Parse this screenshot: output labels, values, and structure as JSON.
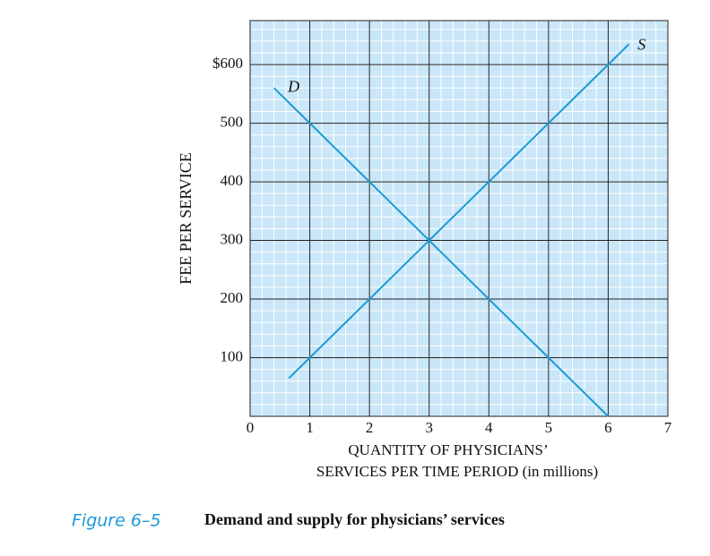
{
  "chart_data": {
    "type": "line",
    "xlabel": [
      "QUANTITY OF PHYSICIANS’",
      "SERVICES PER TIME PERIOD (in millions)"
    ],
    "ylabel": "FEE PER SERVICE",
    "xlim": [
      0,
      7
    ],
    "ylim": [
      0,
      675
    ],
    "xticks": [
      0,
      1,
      2,
      3,
      4,
      5,
      6,
      7
    ],
    "yticks": [
      100,
      200,
      300,
      400,
      500,
      {
        "value": 600,
        "label": "$600"
      }
    ],
    "grid": true,
    "series": [
      {
        "name": "D",
        "color": "#1b9ad8",
        "x": [
          0.4,
          1,
          2,
          3,
          4,
          5,
          6
        ],
        "values": [
          560,
          500,
          400,
          300,
          200,
          100,
          0
        ]
      },
      {
        "name": "S",
        "color": "#1b9ad8",
        "x": [
          0.65,
          1,
          2,
          3,
          4,
          5,
          6,
          6.35
        ],
        "values": [
          65,
          100,
          200,
          300,
          400,
          500,
          600,
          635
        ]
      }
    ],
    "caption": {
      "label": "Figure 6–5",
      "text": "Demand and supply for physicians’ services"
    }
  }
}
